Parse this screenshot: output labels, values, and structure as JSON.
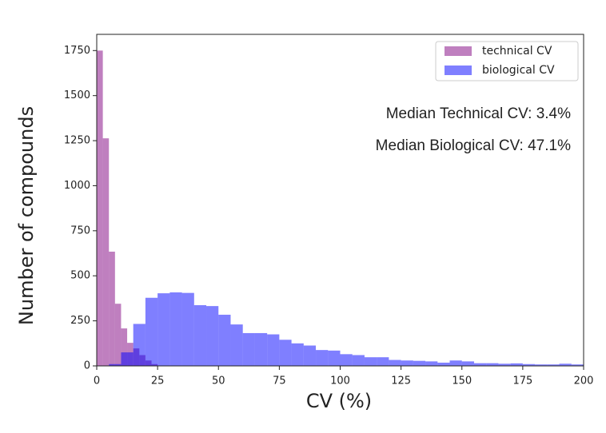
{
  "chart_data": {
    "type": "histogram",
    "xlabel": "CV (%)",
    "ylabel": "Number of  compounds",
    "xlim": [
      0,
      200
    ],
    "ylim": [
      0,
      1840
    ],
    "xticks": [
      0,
      25,
      50,
      75,
      100,
      125,
      150,
      175,
      200
    ],
    "yticks": [
      0,
      250,
      500,
      750,
      1000,
      1250,
      1500,
      1750
    ],
    "legend": "upper right",
    "annotations": [
      "Median Technical CV: 3.4%",
      "Median Biological CV: 47.1%"
    ],
    "series": [
      {
        "name": "technical CV",
        "color": "#800080",
        "bins": [
          0,
          2.5,
          5,
          7.5,
          10,
          12.5,
          15,
          17.5,
          20,
          22.5,
          25
        ],
        "values": [
          1750,
          1263,
          634,
          345,
          208,
          128,
          97,
          60,
          30,
          10
        ]
      },
      {
        "name": "biological CV",
        "color": "#0000ff",
        "bins": [
          0,
          5,
          10,
          15,
          20,
          25,
          30,
          35,
          40,
          45,
          50,
          55,
          60,
          65,
          70,
          75,
          80,
          85,
          90,
          95,
          100,
          105,
          110,
          115,
          120,
          125,
          130,
          135,
          140,
          145,
          150,
          155,
          160,
          165,
          170,
          175,
          180,
          185,
          190,
          195,
          200
        ],
        "values": [
          0,
          10,
          75,
          233,
          378,
          403,
          408,
          405,
          337,
          332,
          284,
          230,
          182,
          182,
          175,
          145,
          125,
          113,
          88,
          85,
          65,
          60,
          48,
          48,
          33,
          30,
          28,
          25,
          18,
          30,
          25,
          15,
          15,
          12,
          14,
          10,
          8,
          8,
          12,
          8
        ]
      }
    ]
  }
}
